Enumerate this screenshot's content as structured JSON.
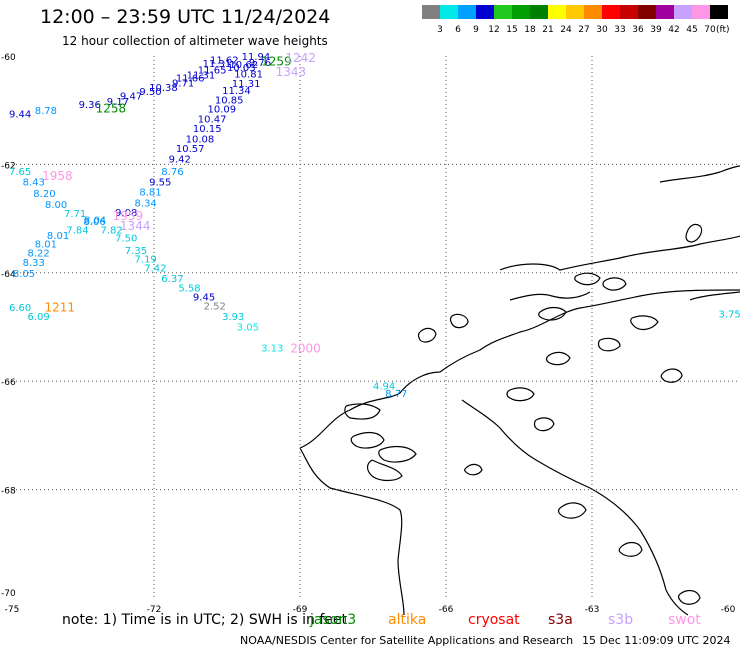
{
  "header": {
    "title": "12:00 – 23:59 UTC 11/24/2024",
    "subtitle": "12 hour collection of altimeter wave heights"
  },
  "legend": {
    "unit": "(ft)",
    "labels": [
      "3",
      "6",
      "9",
      "12",
      "15",
      "18",
      "21",
      "24",
      "27",
      "30",
      "33",
      "36",
      "39",
      "42",
      "45",
      "70"
    ],
    "colors": [
      "#808080",
      "#00e8e8",
      "#00a0ff",
      "#0000d0",
      "#20c820",
      "#00a000",
      "#008000",
      "#ffff00",
      "#ffc800",
      "#ff8c00",
      "#ff0000",
      "#c80000",
      "#800000",
      "#a000a0",
      "#c8a0ff",
      "#ff96e6",
      "#000000"
    ]
  },
  "map": {
    "lat_range": [
      -70,
      -60
    ],
    "lon_range": [
      -75,
      -60
    ],
    "lat_labels": [
      "-60",
      "-62",
      "-64",
      "-66",
      "-68",
      "-70"
    ],
    "lon_labels": [
      "-75",
      "-72",
      "-69",
      "-66",
      "-63",
      "-60"
    ],
    "observations": [
      {
        "lat": -60.0,
        "lon": -70.2,
        "text": "11.94",
        "color": "#0000cc"
      },
      {
        "lat": -60.06,
        "lon": -70.85,
        "text": "11.62",
        "color": "#0000cc"
      },
      {
        "lat": -60.13,
        "lon": -71.0,
        "text": "11.31",
        "color": "#0000cc"
      },
      {
        "lat": -60.15,
        "lon": -70.45,
        "text": "10.62",
        "color": "#0000cc"
      },
      {
        "lat": -60.2,
        "lon": -70.5,
        "text": "10.03",
        "color": "#0000cc"
      },
      {
        "lat": -60.11,
        "lon": -70.05,
        "text": "9.76",
        "color": "#0000cc"
      },
      {
        "lat": -60.25,
        "lon": -71.1,
        "text": "11.65",
        "color": "#0000cc"
      },
      {
        "lat": -60.34,
        "lon": -71.33,
        "text": "11.31",
        "color": "#0000cc"
      },
      {
        "lat": -60.32,
        "lon": -70.35,
        "text": "10.81",
        "color": "#0000cc"
      },
      {
        "lat": -60.4,
        "lon": -71.55,
        "text": "11.66",
        "color": "#0000cc"
      },
      {
        "lat": -60.49,
        "lon": -71.63,
        "text": "9.71",
        "color": "#0000cc"
      },
      {
        "lat": -60.5,
        "lon": -70.4,
        "text": "11.31",
        "color": "#0000cc"
      },
      {
        "lat": -60.57,
        "lon": -72.1,
        "text": "10.38",
        "color": "#0000cc"
      },
      {
        "lat": -60.63,
        "lon": -70.6,
        "text": "11.34",
        "color": "#0000cc"
      },
      {
        "lat": -60.65,
        "lon": -72.3,
        "text": "9.50",
        "color": "#0000cc"
      },
      {
        "lat": -60.73,
        "lon": -72.7,
        "text": "9.47",
        "color": "#0000cc"
      },
      {
        "lat": -60.8,
        "lon": -70.75,
        "text": "10.85",
        "color": "#0000cc"
      },
      {
        "lat": -60.83,
        "lon": -72.97,
        "text": "9.17",
        "color": "#0000cc"
      },
      {
        "lat": -60.89,
        "lon": -73.55,
        "text": "9.36",
        "color": "#0000cc"
      },
      {
        "lat": -60.97,
        "lon": -70.9,
        "text": "10.09",
        "color": "#0000cc"
      },
      {
        "lat": -61.0,
        "lon": -74.45,
        "text": "8.78",
        "color": "#0096ff"
      },
      {
        "lat": -61.06,
        "lon": -74.98,
        "text": "9.44",
        "color": "#0000cc"
      },
      {
        "lat": -61.15,
        "lon": -71.1,
        "text": "10.47",
        "color": "#0000cc"
      },
      {
        "lat": -61.33,
        "lon": -71.2,
        "text": "10.15",
        "color": "#0000cc"
      },
      {
        "lat": -61.52,
        "lon": -71.35,
        "text": "10.08",
        "color": "#0000cc"
      },
      {
        "lat": -61.7,
        "lon": -71.55,
        "text": "10.57",
        "color": "#0000cc"
      },
      {
        "lat": -61.89,
        "lon": -71.7,
        "text": "9.42",
        "color": "#0000cc"
      },
      {
        "lat": -62.12,
        "lon": -71.85,
        "text": "8.76",
        "color": "#0096ff"
      },
      {
        "lat": -62.12,
        "lon": -74.98,
        "text": "7.65",
        "color": "#00c8dc"
      },
      {
        "lat": -62.32,
        "lon": -72.1,
        "text": "9.55",
        "color": "#0000cc"
      },
      {
        "lat": -62.32,
        "lon": -74.7,
        "text": "8.43",
        "color": "#0096ff"
      },
      {
        "lat": -62.5,
        "lon": -72.3,
        "text": "8.81",
        "color": "#0096ff"
      },
      {
        "lat": -62.53,
        "lon": -74.48,
        "text": "8.20",
        "color": "#0096ff"
      },
      {
        "lat": -62.7,
        "lon": -72.4,
        "text": "8.34",
        "color": "#0096ff"
      },
      {
        "lat": -62.73,
        "lon": -74.24,
        "text": "8.00",
        "color": "#0096ff"
      },
      {
        "lat": -62.88,
        "lon": -72.8,
        "text": "9.08",
        "color": "#0000cc"
      },
      {
        "lat": -62.9,
        "lon": -73.85,
        "text": "7.71",
        "color": "#00c8dc"
      },
      {
        "lat": -63.02,
        "lon": -73.44,
        "text": "8.04",
        "color": "#0096ff"
      },
      {
        "lat": -63.04,
        "lon": -73.45,
        "text": "8.06",
        "color": "#0096ff"
      },
      {
        "lat": -63.2,
        "lon": -73.8,
        "text": "7.84",
        "color": "#00c8dc"
      },
      {
        "lat": -63.2,
        "lon": -73.1,
        "text": "7.82",
        "color": "#00c8dc"
      },
      {
        "lat": -63.3,
        "lon": -74.2,
        "text": "8.01",
        "color": "#0096ff"
      },
      {
        "lat": -63.35,
        "lon": -72.8,
        "text": "7.50",
        "color": "#00c8dc"
      },
      {
        "lat": -63.46,
        "lon": -74.45,
        "text": "8.01",
        "color": "#0096ff"
      },
      {
        "lat": -63.58,
        "lon": -72.6,
        "text": "7.35",
        "color": "#00c8dc"
      },
      {
        "lat": -63.63,
        "lon": -74.6,
        "text": "8.22",
        "color": "#0096ff"
      },
      {
        "lat": -63.74,
        "lon": -72.4,
        "text": "7.19",
        "color": "#00c8dc"
      },
      {
        "lat": -63.8,
        "lon": -74.7,
        "text": "8.33",
        "color": "#0096ff"
      },
      {
        "lat": -63.9,
        "lon": -72.2,
        "text": "7.42",
        "color": "#00c8dc"
      },
      {
        "lat": -64.0,
        "lon": -74.9,
        "text": "8.05",
        "color": "#0096ff"
      },
      {
        "lat": -64.1,
        "lon": -71.85,
        "text": "6.37",
        "color": "#00c8dc"
      },
      {
        "lat": -64.27,
        "lon": -71.5,
        "text": "5.58",
        "color": "#00c8dc"
      },
      {
        "lat": -64.44,
        "lon": -71.2,
        "text": "9.45",
        "color": "#0000cc"
      },
      {
        "lat": -64.6,
        "lon": -70.98,
        "text": "2.52",
        "color": "#808080"
      },
      {
        "lat": -64.63,
        "lon": -74.98,
        "text": "6.60",
        "color": "#00c8dc"
      },
      {
        "lat": -64.8,
        "lon": -70.6,
        "text": "3.93",
        "color": "#00c8dc"
      },
      {
        "lat": -64.8,
        "lon": -74.6,
        "text": "6.09",
        "color": "#00c8dc"
      },
      {
        "lat": -64.99,
        "lon": -70.3,
        "text": "3.05",
        "color": "#00e8e8"
      },
      {
        "lat": -64.75,
        "lon": -60.4,
        "text": "3.75",
        "color": "#00c8dc"
      },
      {
        "lat": -65.38,
        "lon": -69.8,
        "text": "3.13",
        "color": "#00e8e8"
      },
      {
        "lat": -66.08,
        "lon": -67.5,
        "text": "4.94",
        "color": "#00c8dc"
      },
      {
        "lat": -66.22,
        "lon": -67.25,
        "text": "8.77",
        "color": "#0096ff"
      }
    ],
    "passes": [
      {
        "lat": -60.08,
        "lon": -69.8,
        "text": "1259",
        "color": "#008c00"
      },
      {
        "lat": -60.28,
        "lon": -69.5,
        "text": "1343",
        "color": "#c8a0ff"
      },
      {
        "lat": -60.02,
        "lon": -69.3,
        "text": "1242",
        "color": "#c8a0ff"
      },
      {
        "lat": -60.95,
        "lon": -73.2,
        "text": "1258",
        "color": "#008c00"
      },
      {
        "lat": -62.2,
        "lon": -74.3,
        "text": "1958",
        "color": "#ff96e6"
      },
      {
        "lat": -62.93,
        "lon": -72.85,
        "text": "1959",
        "color": "#ff96e6"
      },
      {
        "lat": -63.12,
        "lon": -72.7,
        "text": "1344",
        "color": "#c8a0ff"
      },
      {
        "lat": -64.62,
        "lon": -74.25,
        "text": "1211",
        "color": "#ff8c00"
      },
      {
        "lat": -65.38,
        "lon": -69.2,
        "text": "2000",
        "color": "#ff96e6"
      }
    ]
  },
  "footer": {
    "note": "note:  1) Time is in UTC; 2) SWH is in feet",
    "missions": [
      {
        "name": "jason3",
        "color": "#008c00"
      },
      {
        "name": "altika",
        "color": "#ff8c00"
      },
      {
        "name": "cryosat",
        "color": "#ff0000"
      },
      {
        "name": "s3a",
        "color": "#800000"
      },
      {
        "name": "s3b",
        "color": "#c8a0ff"
      },
      {
        "name": "swot",
        "color": "#ff96e6"
      }
    ],
    "credit": "NOAA/NESDIS Center for Satellite Applications and Research",
    "timestamp": "15 Dec 11:09:09 UTC 2024"
  }
}
